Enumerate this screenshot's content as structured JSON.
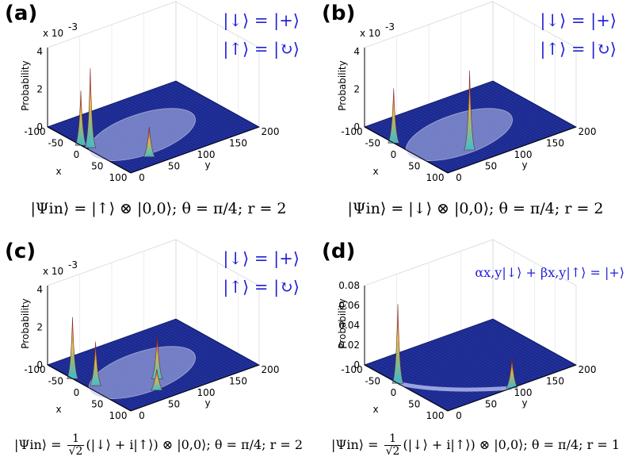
{
  "chart_data": [
    {
      "type": "3d-surface",
      "panel": "(a)",
      "scale_label": "x 10",
      "scale_exponent": "-3",
      "zlabel": "Probability",
      "xlabel": "x",
      "ylabel": "y",
      "z_ticks": [
        "4",
        "2",
        "0"
      ],
      "x_ticks": [
        "-100",
        "-50",
        "0",
        "50",
        "100"
      ],
      "y_ticks": [
        "0",
        "50",
        "100",
        "150",
        "200"
      ],
      "zlim": [
        0,
        0.0045
      ],
      "peaks": [
        {
          "x": -5,
          "y": 5,
          "z": 0.0045
        },
        {
          "x": -20,
          "y": 0,
          "z": 0.0031
        },
        {
          "x": 75,
          "y": 45,
          "z": 0.0017
        }
      ],
      "legend": [
        "|↓⟩ = |+⟩",
        "|↑⟩ = |↻⟩"
      ],
      "caption": "|Ψin⟩ = |↑⟩ ⊗ |0,0⟩; θ = π/4; r = 2"
    },
    {
      "type": "3d-surface",
      "panel": "(b)",
      "scale_label": "x 10",
      "scale_exponent": "-3",
      "zlabel": "Probability",
      "xlabel": "x",
      "ylabel": "y",
      "z_ticks": [
        "4",
        "2",
        "0"
      ],
      "x_ticks": [
        "-100",
        "-50",
        "0",
        "50",
        "100"
      ],
      "y_ticks": [
        "0",
        "50",
        "100",
        "150",
        "200"
      ],
      "zlim": [
        0,
        0.0045
      ],
      "peaks": [
        {
          "x": 60,
          "y": 60,
          "z": 0.0045
        },
        {
          "x": -30,
          "y": 0,
          "z": 0.0031
        }
      ],
      "legend": [
        "|↓⟩ = |+⟩",
        "|↑⟩ = |↻⟩"
      ],
      "caption": "|Ψin⟩ = |↓⟩ ⊗ |0,0⟩; θ = π/4; r = 2"
    },
    {
      "type": "3d-surface",
      "panel": "(c)",
      "scale_label": "x 10",
      "scale_exponent": "-3",
      "zlabel": "Probability",
      "xlabel": "x",
      "ylabel": "y",
      "z_ticks": [
        "4",
        "2",
        "0"
      ],
      "x_ticks": [
        "-100",
        "-50",
        "0",
        "50",
        "100"
      ],
      "y_ticks": [
        "0",
        "50",
        "100",
        "150",
        "200"
      ],
      "zlim": [
        0,
        0.0045
      ],
      "peaks": [
        {
          "x": -40,
          "y": 0,
          "z": 0.0035
        },
        {
          "x": 0,
          "y": 10,
          "z": 0.0025
        },
        {
          "x": 40,
          "y": 80,
          "z": 0.0025
        },
        {
          "x": 70,
          "y": 60,
          "z": 0.0012
        }
      ],
      "legend": [
        "|↓⟩ = |+⟩",
        "|↑⟩ = |↻⟩"
      ],
      "caption_prefix": "|Ψin⟩ = ",
      "caption_frac_num": "1",
      "caption_frac_den": "√2",
      "caption_suffix": "(|↓⟩ + i|↑⟩) ⊗ |0,0⟩; θ = π/4; r = 2"
    },
    {
      "type": "3d-surface",
      "panel": "(d)",
      "zlabel": "Probability",
      "xlabel": "x",
      "ylabel": "y",
      "z_ticks": [
        "0.08",
        "0.06",
        "0.04",
        "0.02",
        "0"
      ],
      "x_ticks": [
        "-100",
        "-50",
        "0",
        "50",
        "100"
      ],
      "y_ticks": [
        "0",
        "50",
        "100",
        "150",
        "200"
      ],
      "zlim": [
        0,
        0.08
      ],
      "peaks": [
        {
          "x": -20,
          "y": 0,
          "z": 0.08
        },
        {
          "x": 100,
          "y": 100,
          "z": 0.03
        }
      ],
      "legend": [
        "αx,y|↓⟩ + βx,y|↑⟩ = |+⟩"
      ],
      "caption_prefix": "|Ψin⟩ = ",
      "caption_frac_num": "1",
      "caption_frac_den": "√2",
      "caption_suffix": "(|↓⟩ + i|↑⟩) ⊗ |0,0⟩; θ = π/4; r = 1"
    }
  ],
  "colors": {
    "floor": "#1c2a8f",
    "floor_grid": "#3a4fc4",
    "legend": "#1f1fd6",
    "peak_hot": "#d83a3a",
    "peak_warm": "#e0c040",
    "peak_cool": "#40c0d0",
    "ring": "#b9c2ef"
  }
}
